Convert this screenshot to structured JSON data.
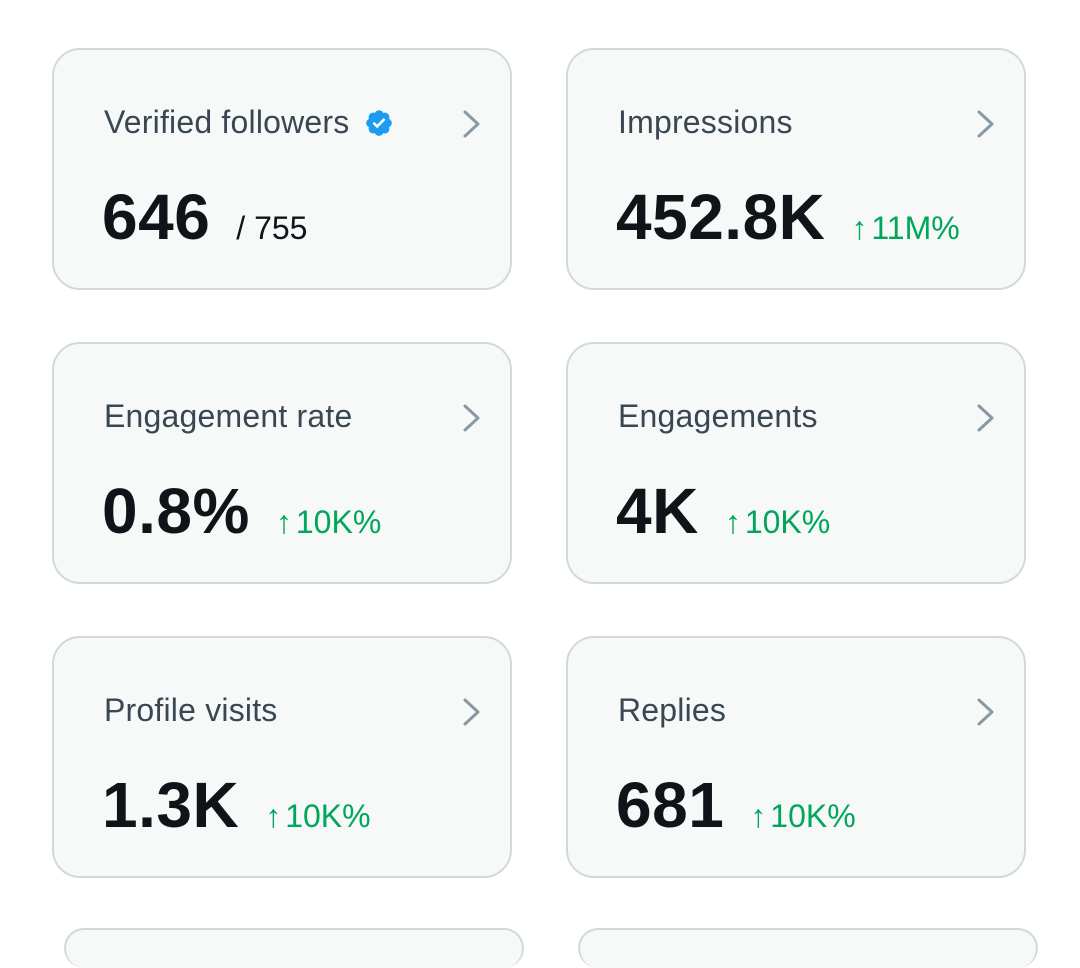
{
  "colors": {
    "card_bg": "#f7f9f9",
    "card_border": "#cfd9de",
    "label": "#3a4753",
    "value": "#0f1419",
    "positive": "#00a65a",
    "verified": "#1d9bf0",
    "chevron": "#8899a6"
  },
  "icons": {
    "verified": "verified-badge-icon",
    "chevron": "chevron-right-icon",
    "arrow": "arrow-up-icon"
  },
  "cards": [
    {
      "label": "Verified followers",
      "value": "646",
      "secondary": "/ 755"
    },
    {
      "label": "Impressions",
      "value": "452.8K",
      "arrow": "↑",
      "change": "11M%"
    },
    {
      "label": "Engagement rate",
      "value": "0.8%",
      "arrow": "↑",
      "change": "10K%"
    },
    {
      "label": "Engagements",
      "value": "4K",
      "arrow": "↑",
      "change": "10K%"
    },
    {
      "label": "Profile visits",
      "value": "1.3K",
      "arrow": "↑",
      "change": "10K%"
    },
    {
      "label": "Replies",
      "value": "681",
      "arrow": "↑",
      "change": "10K%"
    }
  ]
}
